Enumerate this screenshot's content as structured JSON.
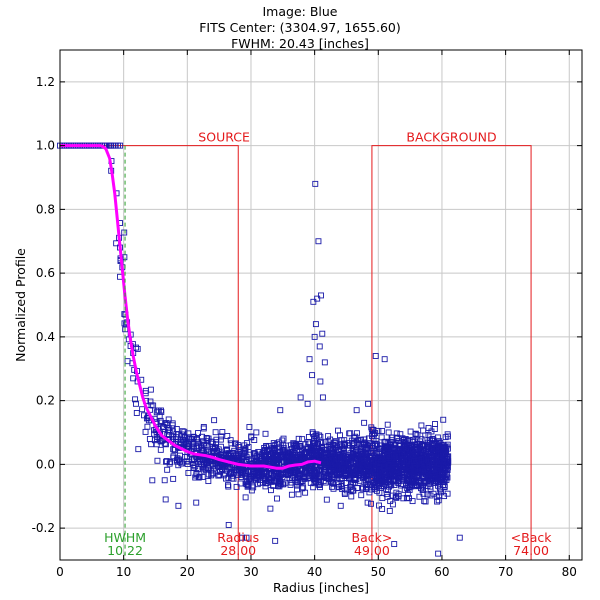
{
  "chart_data": {
    "type": "scatter",
    "title_lines": [
      "Image: Blue",
      "FITS Center: (3304.97,  1655.60)",
      "FWHM: 20.43 [inches]"
    ],
    "xlabel": "Radius [inches]",
    "ylabel": "Normalized Profile",
    "xlim": [
      0,
      82
    ],
    "ylim": [
      -0.3,
      1.3
    ],
    "x_ticks": [
      0,
      10,
      20,
      30,
      40,
      50,
      60,
      70,
      80
    ],
    "x_tick_labels": [
      "0",
      "10",
      "20",
      "30",
      "40",
      "50",
      "60",
      "70",
      "80"
    ],
    "y_ticks": [
      -0.2,
      0.0,
      0.2,
      0.4,
      0.6,
      0.8,
      1.0,
      1.2
    ],
    "y_tick_labels": [
      "-0.2",
      "0.0",
      "0.2",
      "0.4",
      "0.6",
      "0.8",
      "1.0",
      "1.2"
    ],
    "grid": true,
    "colors": {
      "points": "#1a1aa8",
      "mean_profile": "#ff00ff",
      "regions": "#e41a1c",
      "hwhm": "#2ca02c",
      "grid": "#c8c8c8"
    },
    "series": [
      {
        "name": "pixel values",
        "style": "open-square",
        "description_of_distribution": "dense cloud sampled along the mean profile",
        "envelope_x": [
          0,
          5,
          7,
          8,
          9,
          10,
          11,
          12,
          13,
          14,
          15,
          17,
          20,
          25,
          30,
          35,
          40,
          45,
          50,
          55,
          60
        ],
        "envelope_spread": [
          0.0,
          0.0,
          0.03,
          0.08,
          0.12,
          0.15,
          0.15,
          0.12,
          0.1,
          0.09,
          0.08,
          0.07,
          0.07,
          0.07,
          0.07,
          0.07,
          0.07,
          0.07,
          0.08,
          0.08,
          0.08
        ],
        "outliers": [
          [
            40.1,
            0.88
          ],
          [
            40.6,
            0.7
          ],
          [
            41.0,
            0.53
          ],
          [
            40.4,
            0.52
          ],
          [
            39.8,
            0.51
          ],
          [
            40.2,
            0.44
          ],
          [
            41.2,
            0.41
          ],
          [
            40.0,
            0.4
          ],
          [
            39.2,
            0.33
          ],
          [
            40.8,
            0.37
          ],
          [
            41.6,
            0.32
          ],
          [
            39.6,
            0.28
          ],
          [
            40.9,
            0.26
          ],
          [
            41.3,
            0.21
          ],
          [
            37.8,
            0.21
          ],
          [
            38.9,
            0.19
          ],
          [
            34.6,
            0.17
          ],
          [
            49.6,
            0.34
          ],
          [
            51.0,
            0.33
          ],
          [
            48.4,
            0.19
          ],
          [
            46.6,
            0.17
          ],
          [
            60.2,
            0.14
          ],
          [
            58.5,
            0.08
          ],
          [
            59.7,
            0.01
          ],
          [
            59.4,
            -0.28
          ],
          [
            62.8,
            -0.23
          ],
          [
            52.5,
            -0.25
          ],
          [
            50.6,
            -0.14
          ],
          [
            44.1,
            -0.13
          ],
          [
            33.8,
            -0.24
          ],
          [
            28.6,
            -0.23
          ],
          [
            29.3,
            -0.23
          ],
          [
            26.5,
            -0.19
          ],
          [
            21.4,
            -0.12
          ],
          [
            18.6,
            -0.13
          ],
          [
            16.6,
            -0.11
          ],
          [
            14.5,
            -0.05
          ]
        ]
      },
      {
        "name": "mean profile",
        "style": "line",
        "x": [
          6.5,
          7.2,
          7.8,
          8.2,
          8.6,
          9.0,
          9.4,
          9.8,
          10.2,
          10.6,
          11.0,
          11.5,
          12.0,
          12.5,
          13.0,
          13.5,
          14.0,
          15.0,
          16.0,
          17.0,
          18.0,
          19.0,
          20.0,
          21.0,
          22.0,
          23.0,
          24.0,
          25.0,
          26.0,
          27.0,
          28.0,
          30.0,
          32.0,
          34.0,
          35.0,
          36.0,
          37.0,
          38.0,
          39.0,
          40.0,
          41.0
        ],
        "y": [
          1.0,
          0.99,
          0.96,
          0.91,
          0.85,
          0.77,
          0.69,
          0.61,
          0.53,
          0.46,
          0.4,
          0.34,
          0.29,
          0.25,
          0.21,
          0.18,
          0.16,
          0.12,
          0.09,
          0.075,
          0.06,
          0.05,
          0.04,
          0.033,
          0.03,
          0.027,
          0.022,
          0.015,
          0.01,
          0.005,
          0.0,
          -0.005,
          -0.005,
          -0.012,
          -0.012,
          -0.005,
          -0.002,
          0.0,
          0.008,
          0.01,
          0.005
        ]
      }
    ],
    "annotations": [
      {
        "kind": "source_box",
        "label": "SOURCE",
        "x_from": 0,
        "x_to": 28.0,
        "y": 1.0
      },
      {
        "kind": "background_box",
        "label": "BACKGROUND",
        "x_from": 49.0,
        "x_to": 74.0,
        "y": 1.0
      },
      {
        "kind": "vline",
        "name": "hwhm",
        "x": 10.22,
        "label_line1": "HWHM",
        "label_line2": "10.22"
      },
      {
        "kind": "vline",
        "name": "radius",
        "x": 28.0,
        "label_line1": "Radius",
        "label_line2": "28.00"
      },
      {
        "kind": "vline",
        "name": "back-inner",
        "x": 49.0,
        "label_line1": "Back>",
        "label_line2": "49.00"
      },
      {
        "kind": "vline",
        "name": "back-outer",
        "x": 74.0,
        "label_line1": "<Back",
        "label_line2": "74.00"
      }
    ]
  }
}
